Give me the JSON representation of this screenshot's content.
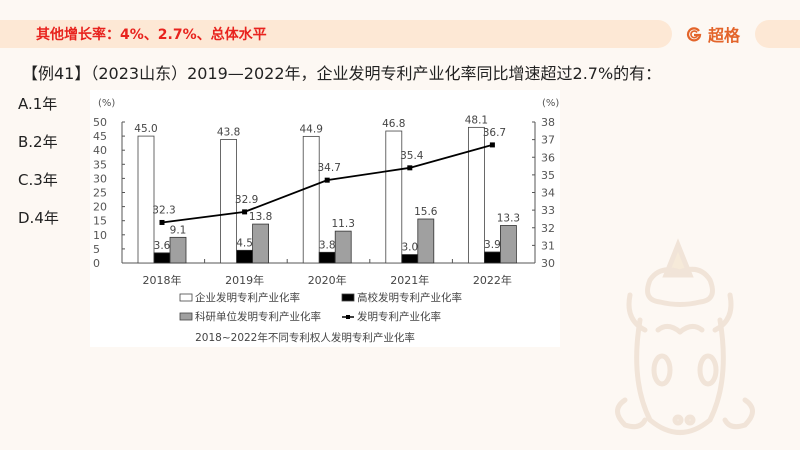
{
  "header": {
    "topic": "其他增长率：4%、2.7%、总体水平",
    "brand": "超格",
    "brand_color": "#e3642a",
    "topic_color": "#e8231e"
  },
  "question": {
    "text": "【例41】（2023山东）2019—2022年，企业发明专利产业化率同比增速超过2.7%的有：",
    "options": [
      "A.1年",
      "B.2年",
      "C.3年",
      "D.4年"
    ]
  },
  "chart_data": {
    "type": "bar",
    "title": "2018~2022年不同专利权人发明专利产业化率",
    "categories": [
      "2018年",
      "2019年",
      "2020年",
      "2021年",
      "2022年"
    ],
    "left_axis": {
      "unit": "(%)",
      "ylim": [
        0,
        50
      ],
      "ticks": [
        0,
        5,
        10,
        15,
        20,
        25,
        30,
        35,
        40,
        45,
        50
      ]
    },
    "right_axis": {
      "unit": "(%)",
      "ylim": [
        30,
        38
      ],
      "ticks": [
        30,
        31,
        32,
        33,
        34,
        35,
        36,
        37,
        38
      ]
    },
    "series": [
      {
        "name": "企业发明专利产业化率",
        "type": "bar",
        "axis": "left",
        "color": "#ffffff",
        "values": [
          45.0,
          43.8,
          44.9,
          46.8,
          48.1
        ],
        "labels": [
          "45.0",
          "43.8",
          "44.9",
          "46.8",
          "48.1"
        ]
      },
      {
        "name": "高校发明专利产业化率",
        "type": "bar",
        "axis": "left",
        "color": "#000000",
        "values": [
          3.6,
          4.5,
          3.8,
          3.0,
          3.9
        ],
        "labels": [
          "3.6",
          "4.5",
          "3.8",
          "3.0",
          "3.9"
        ]
      },
      {
        "name": "科研单位发明专利产业化率",
        "type": "bar",
        "axis": "left",
        "color": "#a0a0a0",
        "values": [
          9.1,
          13.8,
          11.3,
          15.6,
          13.3
        ],
        "labels": [
          "9.1",
          "13.8",
          "11.3",
          "15.6",
          "13.3"
        ]
      },
      {
        "name": "发明专利产业化率",
        "type": "line",
        "axis": "right",
        "color": "#000000",
        "values": [
          32.3,
          32.9,
          34.7,
          35.4,
          36.7
        ],
        "labels": [
          "32.3",
          "32.9",
          "34.7",
          "35.4",
          "36.7"
        ]
      }
    ],
    "legend_position": "bottom",
    "grid": false
  }
}
